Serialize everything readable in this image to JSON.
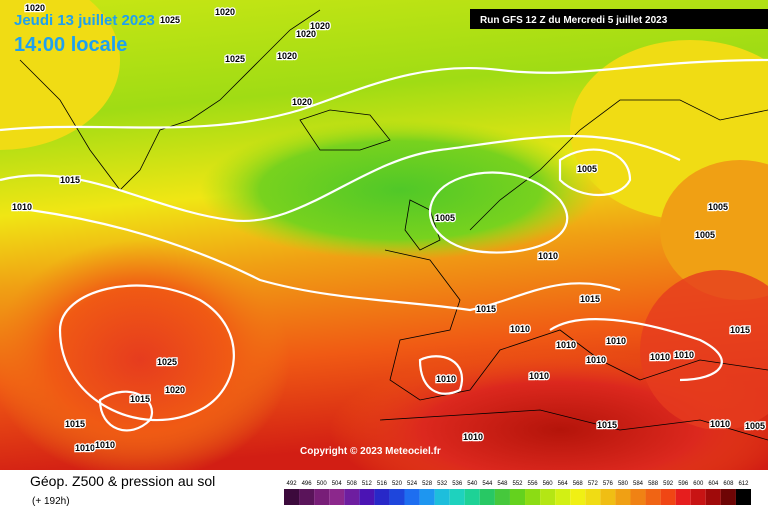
{
  "header": {
    "date": "Jeudi 13 juillet 2023",
    "time": "14:00 locale",
    "run": "Run GFS 12 Z du Mercredi 5 juillet 2023",
    "copyright": "Copyright © 2023 Meteociel.fr"
  },
  "footer": {
    "title": "Géop. Z500 & pression au sol",
    "subtitle": "(+ 192h)"
  },
  "legend": {
    "values": [
      492,
      496,
      500,
      504,
      508,
      512,
      516,
      520,
      524,
      528,
      532,
      536,
      540,
      544,
      548,
      552,
      556,
      560,
      564,
      568,
      572,
      576,
      580,
      584,
      588,
      592,
      596,
      600,
      604,
      608,
      612
    ],
    "colors": [
      "#3c0a3c",
      "#5a145a",
      "#781e78",
      "#8c288c",
      "#6e1ea0",
      "#4b14b4",
      "#2828c8",
      "#1e46dc",
      "#1e6ef0",
      "#1e96f0",
      "#1ebedc",
      "#1ed2be",
      "#1ed296",
      "#28c864",
      "#46c83c",
      "#64d21e",
      "#8cdc14",
      "#b4e614",
      "#d2f014",
      "#f0f014",
      "#f0dc14",
      "#f0be14",
      "#f0a014",
      "#f08214",
      "#f06414",
      "#f04614",
      "#e61e1e",
      "#c81414",
      "#a00a0a",
      "#6e0505",
      "#000000"
    ]
  },
  "isobar_labels": [
    1020,
    1025,
    1020,
    1020,
    1020,
    1020,
    1025,
    1020,
    1015,
    1010,
    1005,
    1005,
    1005,
    1005,
    1010,
    1015,
    1015,
    1010,
    1015,
    1010,
    1010,
    1010,
    1010,
    1010,
    1025,
    1020,
    1010,
    1010,
    1015,
    1015,
    1010,
    1010,
    1010,
    1015,
    1010,
    1005
  ]
}
